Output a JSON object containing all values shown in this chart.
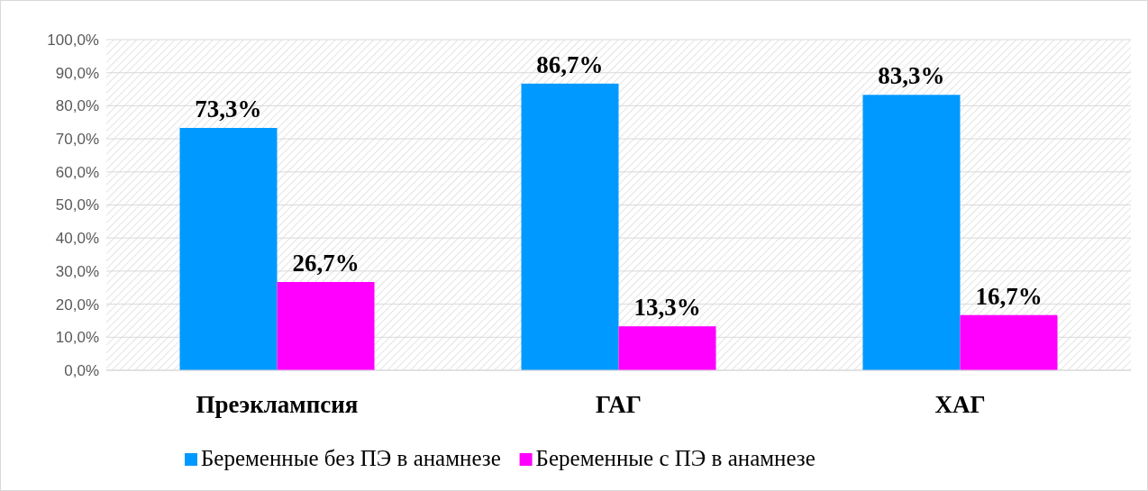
{
  "chart_data": {
    "type": "bar",
    "categories": [
      "Преэклампсия",
      "ГАГ",
      "ХАГ"
    ],
    "series": [
      {
        "name": "Беременные без ПЭ в анамнезе",
        "color": "#0099ff",
        "values": [
          73.3,
          86.7,
          83.3
        ],
        "value_labels": [
          "73,3%",
          "86,7%",
          "83,3%"
        ]
      },
      {
        "name": "Беременные с ПЭ в анамнезе",
        "color": "#ff00ff",
        "values": [
          26.7,
          13.3,
          16.7
        ],
        "value_labels": [
          "26,7%",
          "13,3%",
          "16,7%"
        ]
      }
    ],
    "ylim": [
      0,
      100
    ],
    "yticks": [
      {
        "value": 0,
        "label": "0,0%"
      },
      {
        "value": 10,
        "label": "10,0%"
      },
      {
        "value": 20,
        "label": "20,0%"
      },
      {
        "value": 30,
        "label": "30,0%"
      },
      {
        "value": 40,
        "label": "40,0%"
      },
      {
        "value": 50,
        "label": "50,0%"
      },
      {
        "value": 60,
        "label": "60,0%"
      },
      {
        "value": 70,
        "label": "70,0%"
      },
      {
        "value": 80,
        "label": "80,0%"
      },
      {
        "value": 90,
        "label": "90,0%"
      },
      {
        "value": 100,
        "label": "100,0%"
      }
    ],
    "grid": "y",
    "legend": "bottom"
  }
}
